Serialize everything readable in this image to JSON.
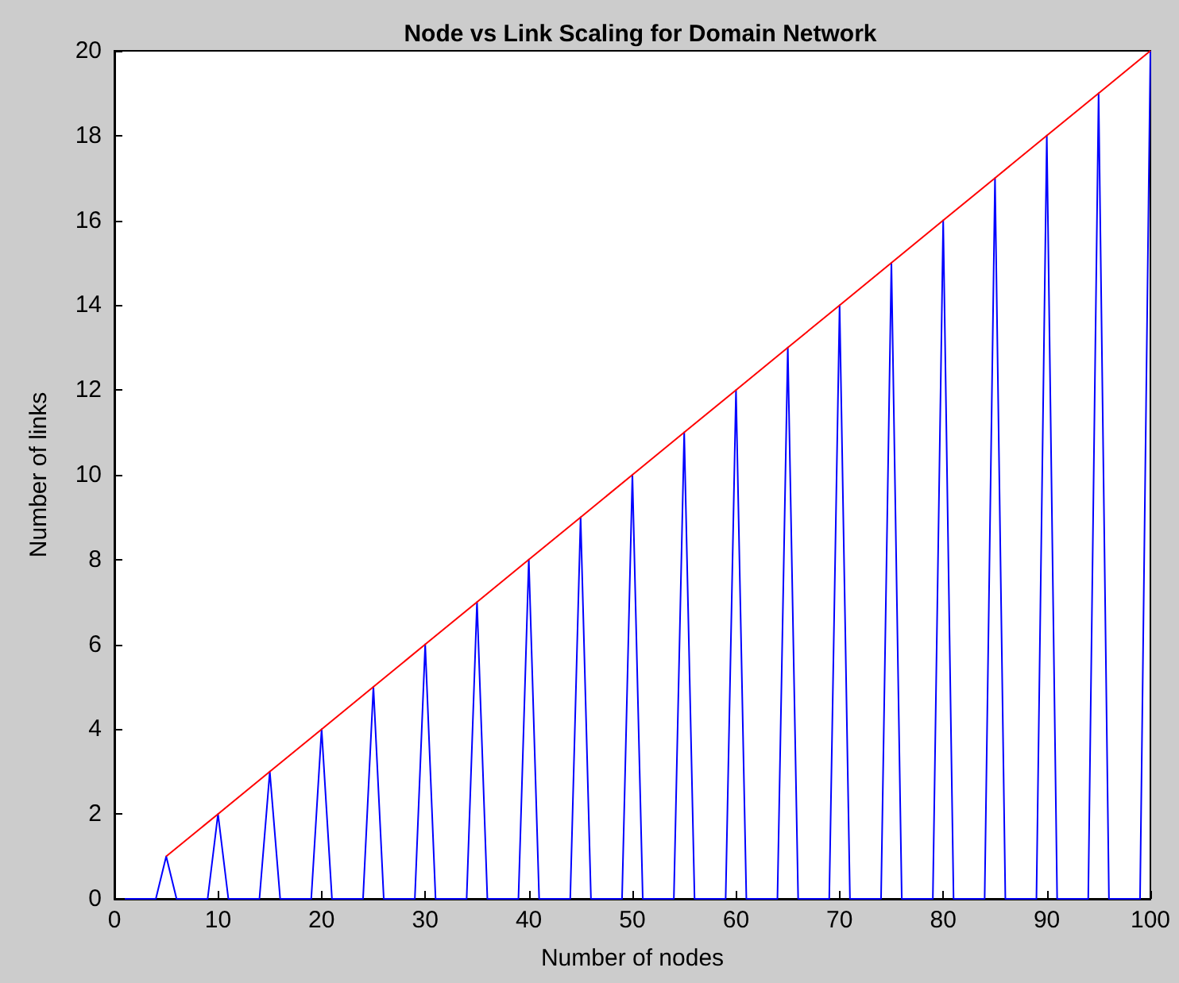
{
  "chart_data": {
    "type": "line",
    "title": "Node vs Link Scaling for Domain Network",
    "xlabel": "Number of nodes",
    "ylabel": "Number of links",
    "x": [
      1,
      2,
      3,
      4,
      5,
      6,
      7,
      8,
      9,
      10,
      11,
      12,
      13,
      14,
      15,
      16,
      17,
      18,
      19,
      20,
      21,
      22,
      23,
      24,
      25,
      26,
      27,
      28,
      29,
      30,
      31,
      32,
      33,
      34,
      35,
      36,
      37,
      38,
      39,
      40,
      41,
      42,
      43,
      44,
      45,
      46,
      47,
      48,
      49,
      50,
      51,
      52,
      53,
      54,
      55,
      56,
      57,
      58,
      59,
      60,
      61,
      62,
      63,
      64,
      65,
      66,
      67,
      68,
      69,
      70,
      71,
      72,
      73,
      74,
      75,
      76,
      77,
      78,
      79,
      80,
      81,
      82,
      83,
      84,
      85,
      86,
      87,
      88,
      89,
      90,
      91,
      92,
      93,
      94,
      95,
      96,
      97,
      98,
      99,
      100
    ],
    "series": [
      {
        "color": "#0000ff",
        "values": [
          0,
          0,
          0,
          0,
          1,
          0,
          0,
          0,
          0,
          2,
          0,
          0,
          0,
          0,
          3,
          0,
          0,
          0,
          0,
          4,
          0,
          0,
          0,
          0,
          5,
          0,
          0,
          0,
          0,
          6,
          0,
          0,
          0,
          0,
          7,
          0,
          0,
          0,
          0,
          8,
          0,
          0,
          0,
          0,
          9,
          0,
          0,
          0,
          0,
          10,
          0,
          0,
          0,
          0,
          11,
          0,
          0,
          0,
          0,
          12,
          0,
          0,
          0,
          0,
          13,
          0,
          0,
          0,
          0,
          14,
          0,
          0,
          0,
          0,
          15,
          0,
          0,
          0,
          0,
          16,
          0,
          0,
          0,
          0,
          17,
          0,
          0,
          0,
          0,
          18,
          0,
          0,
          0,
          0,
          19,
          0,
          0,
          0,
          0,
          20
        ]
      },
      {
        "color": "#ff0000",
        "x": [
          5,
          10,
          15,
          20,
          25,
          30,
          35,
          40,
          45,
          50,
          55,
          60,
          65,
          70,
          75,
          80,
          85,
          90,
          95,
          100
        ],
        "values": [
          1,
          2,
          3,
          4,
          5,
          6,
          7,
          8,
          9,
          10,
          11,
          12,
          13,
          14,
          15,
          16,
          17,
          18,
          19,
          20
        ]
      }
    ],
    "xlim": [
      0,
      100
    ],
    "xticks": [
      0,
      10,
      20,
      30,
      40,
      50,
      60,
      70,
      80,
      90,
      100
    ],
    "ylim": [
      0,
      20
    ],
    "yticks": [
      0,
      2,
      4,
      6,
      8,
      10,
      12,
      14,
      16,
      18,
      20
    ],
    "grid": false,
    "marker": "none",
    "line_style": "solid"
  }
}
